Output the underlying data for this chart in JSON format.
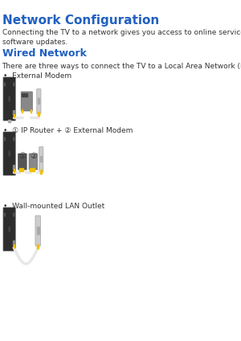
{
  "title": "Network Configuration",
  "title_color": "#2060c0",
  "title_fontsize": 11,
  "body_text": "Connecting the TV to a network gives you access to online services such as the Smart Hub as well as\nsoftware updates.",
  "body_fontsize": 6.5,
  "body_color": "#333333",
  "section_title": "Wired Network",
  "section_title_color": "#2060c0",
  "section_title_fontsize": 9,
  "section_body": "There are three ways to connect the TV to a Local Area Network (LAN).",
  "section_body_color": "#333333",
  "section_body_fontsize": 6.5,
  "bullet1": "External Modem",
  "bullet2": "① IP Router + ② External Modem",
  "bullet3": "Wall-mounted LAN Outlet",
  "bullet_fontsize": 6.5,
  "bullet_color": "#333333",
  "background_color": "#ffffff",
  "tv_color": "#2d2d2d",
  "tv_stand_color": "#888888",
  "modem_color": "#888888",
  "wall_outlet_color": "#cccccc",
  "cable_color": "#e8e8e8",
  "connector_color": "#f0c000",
  "router_color": "#555555",
  "modem2_color": "#888888"
}
